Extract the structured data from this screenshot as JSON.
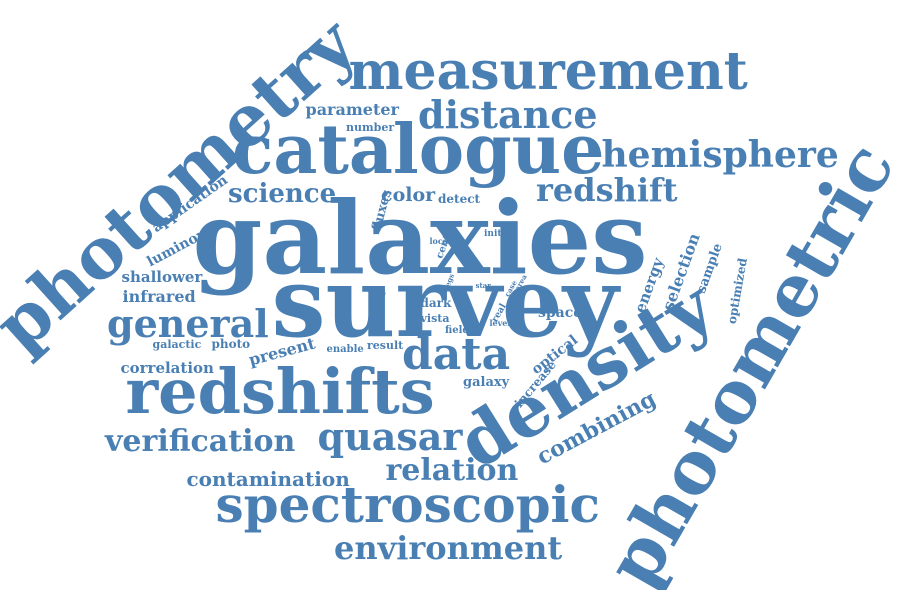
{
  "color": "#4a7fb3",
  "words": [
    {
      "text": "galaxies"
    },
    {
      "text": "survey"
    },
    {
      "text": "photometric"
    },
    {
      "text": "photometry"
    },
    {
      "text": "catalogue"
    },
    {
      "text": "measurement"
    },
    {
      "text": "density"
    },
    {
      "text": "redshifts"
    },
    {
      "text": "spectroscopic"
    },
    {
      "text": "distance"
    },
    {
      "text": "hemisphere"
    },
    {
      "text": "redshift"
    },
    {
      "text": "data"
    },
    {
      "text": "general"
    },
    {
      "text": "quasar"
    },
    {
      "text": "verification"
    },
    {
      "text": "relation"
    },
    {
      "text": "environment"
    },
    {
      "text": "science"
    },
    {
      "text": "combining"
    },
    {
      "text": "contamination"
    },
    {
      "text": "color"
    },
    {
      "text": "parameter"
    },
    {
      "text": "infrared"
    },
    {
      "text": "correlation"
    },
    {
      "text": "shallower"
    },
    {
      "text": "present"
    },
    {
      "text": "application"
    },
    {
      "text": "luminous"
    },
    {
      "text": "selection"
    },
    {
      "text": "energy"
    },
    {
      "text": "sample"
    },
    {
      "text": "optimized"
    },
    {
      "text": "optical"
    },
    {
      "text": "increase"
    },
    {
      "text": "space"
    },
    {
      "text": "galaxy"
    },
    {
      "text": "fluxes"
    },
    {
      "text": "number"
    },
    {
      "text": "detect"
    },
    {
      "text": "dark"
    },
    {
      "text": "vista"
    },
    {
      "text": "galactic"
    },
    {
      "text": "photo"
    },
    {
      "text": "enable"
    },
    {
      "text": "result"
    },
    {
      "text": "cent"
    },
    {
      "text": "local"
    },
    {
      "text": "initial"
    },
    {
      "text": "field"
    },
    {
      "text": "yield"
    },
    {
      "text": "real"
    },
    {
      "text": "level"
    },
    {
      "text": "case"
    },
    {
      "text": "area"
    },
    {
      "text": "star"
    },
    {
      "text": "legs"
    }
  ]
}
